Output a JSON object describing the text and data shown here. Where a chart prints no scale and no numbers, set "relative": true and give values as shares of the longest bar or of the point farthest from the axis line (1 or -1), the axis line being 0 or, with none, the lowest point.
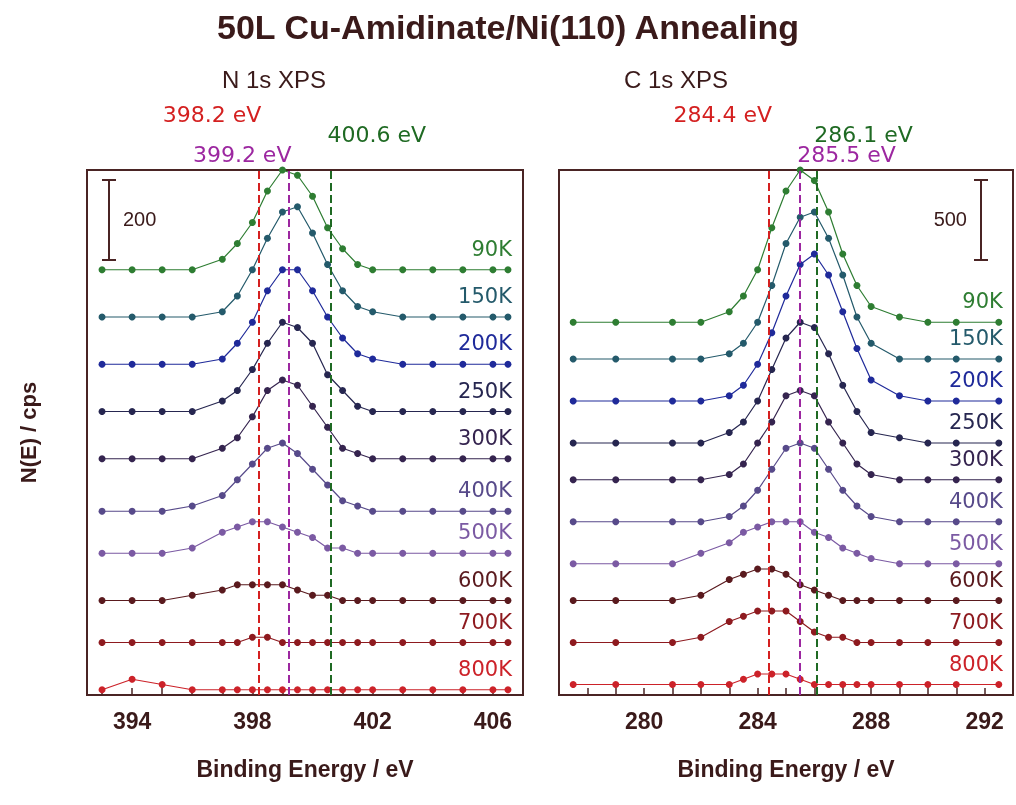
{
  "chart_data": [
    {
      "type": "line",
      "title": "50L Cu-Amidinate/Ni(110) Annealing",
      "subtitle": "N 1s XPS",
      "xlabel": "Binding Energy / eV",
      "ylabel": "N(E) / cps",
      "relative": true,
      "legend": false,
      "grid": false,
      "marker": "circle",
      "line_style": "solid",
      "annotations": [
        "200"
      ],
      "x": [
        393,
        394,
        395,
        396,
        397,
        397.5,
        398,
        398.5,
        399,
        399.5,
        400,
        400.5,
        401,
        401.5,
        402,
        403,
        404,
        405,
        406,
        406.5
      ],
      "xlim": [
        392.5,
        407
      ],
      "xticks": [
        {
          "value": 393,
          "label": null
        },
        394,
        {
          "value": 395,
          "label": null
        },
        {
          "value": 396,
          "label": null
        },
        {
          "value": 397,
          "label": null
        },
        398,
        {
          "value": 399,
          "label": null
        },
        {
          "value": 400,
          "label": null
        },
        {
          "value": 401,
          "label": null
        },
        402,
        {
          "value": 403,
          "label": null
        },
        {
          "value": 404,
          "label": null
        },
        {
          "value": 405,
          "label": null
        },
        406
      ],
      "ref_lines": [
        {
          "axis": "x",
          "value": 399.2,
          "label": "399.2 eV",
          "color": "#9c27a0",
          "line_style": "dashed"
        },
        {
          "axis": "x",
          "value": 400.6,
          "label": "400.6 eV",
          "color": "#1f6a23",
          "line_style": "dashed"
        },
        {
          "axis": "x",
          "value": 398.2,
          "label": "398.2 eV",
          "color": "#d42020",
          "line_style": "dashed"
        }
      ],
      "series": [
        {
          "name": "90K",
          "color": "#2e7d32",
          "values": [
            0.81,
            0.81,
            0.81,
            0.81,
            0.83,
            0.86,
            0.9,
            0.96,
            1.0,
            0.99,
            0.95,
            0.89,
            0.85,
            0.82,
            0.81,
            0.81,
            0.81,
            0.81,
            0.81,
            0.81
          ]
        },
        {
          "name": "150K",
          "color": "#245a6b",
          "values": [
            0.72,
            0.72,
            0.72,
            0.72,
            0.73,
            0.76,
            0.81,
            0.87,
            0.92,
            0.93,
            0.88,
            0.82,
            0.77,
            0.74,
            0.73,
            0.72,
            0.72,
            0.72,
            0.72,
            0.72
          ]
        },
        {
          "name": "200K",
          "color": "#1f2a9a",
          "values": [
            0.63,
            0.63,
            0.63,
            0.63,
            0.64,
            0.67,
            0.71,
            0.77,
            0.81,
            0.81,
            0.77,
            0.72,
            0.68,
            0.65,
            0.64,
            0.63,
            0.63,
            0.63,
            0.63,
            0.63
          ]
        },
        {
          "name": "250K",
          "color": "#262650",
          "values": [
            0.54,
            0.54,
            0.54,
            0.54,
            0.56,
            0.58,
            0.62,
            0.67,
            0.71,
            0.7,
            0.67,
            0.61,
            0.58,
            0.55,
            0.54,
            0.54,
            0.54,
            0.54,
            0.54,
            0.54
          ]
        },
        {
          "name": "300K",
          "color": "#35244f",
          "values": [
            0.45,
            0.45,
            0.45,
            0.45,
            0.47,
            0.49,
            0.53,
            0.58,
            0.6,
            0.59,
            0.55,
            0.51,
            0.47,
            0.46,
            0.45,
            0.45,
            0.45,
            0.45,
            0.45,
            0.45
          ]
        },
        {
          "name": "400K",
          "color": "#574a8a",
          "values": [
            0.35,
            0.35,
            0.35,
            0.36,
            0.38,
            0.41,
            0.44,
            0.47,
            0.48,
            0.46,
            0.43,
            0.4,
            0.37,
            0.36,
            0.35,
            0.35,
            0.35,
            0.35,
            0.35,
            0.35
          ]
        },
        {
          "name": "500K",
          "color": "#7b5aa3",
          "values": [
            0.27,
            0.27,
            0.27,
            0.28,
            0.31,
            0.32,
            0.33,
            0.33,
            0.32,
            0.31,
            0.3,
            0.28,
            0.28,
            0.27,
            0.27,
            0.27,
            0.27,
            0.27,
            0.27,
            0.27
          ]
        },
        {
          "name": "600K",
          "color": "#5a1a1e",
          "values": [
            0.18,
            0.18,
            0.18,
            0.19,
            0.2,
            0.21,
            0.21,
            0.21,
            0.21,
            0.2,
            0.19,
            0.19,
            0.18,
            0.18,
            0.18,
            0.18,
            0.18,
            0.18,
            0.18,
            0.18
          ]
        },
        {
          "name": "700K",
          "color": "#8e1a1f",
          "values": [
            0.1,
            0.1,
            0.1,
            0.1,
            0.1,
            0.1,
            0.11,
            0.11,
            0.1,
            0.1,
            0.1,
            0.1,
            0.1,
            0.1,
            0.1,
            0.1,
            0.1,
            0.1,
            0.1,
            0.1
          ]
        },
        {
          "name": "800K",
          "color": "#cc2229",
          "values": [
            0.01,
            0.03,
            0.02,
            0.01,
            0.01,
            0.01,
            0.01,
            0.01,
            0.01,
            0.01,
            0.01,
            0.01,
            0.01,
            0.01,
            0.01,
            0.01,
            0.01,
            0.01,
            0.01,
            0.01
          ]
        }
      ]
    },
    {
      "type": "line",
      "subtitle": "C 1s XPS",
      "xlabel": "Binding Energy / eV",
      "relative": true,
      "legend": false,
      "grid": false,
      "marker": "circle",
      "line_style": "solid",
      "annotations": [
        "500"
      ],
      "x": [
        277.5,
        279,
        281,
        282,
        283,
        283.5,
        284,
        284.5,
        285,
        285.5,
        286,
        286.5,
        287,
        287.5,
        288,
        289,
        290,
        291,
        292.5
      ],
      "xlim": [
        277,
        293
      ],
      "xticks": [
        {
          "value": 278,
          "label": null
        },
        {
          "value": 279,
          "label": null
        },
        280,
        {
          "value": 281,
          "label": null
        },
        {
          "value": 282,
          "label": null
        },
        {
          "value": 283,
          "label": null
        },
        284,
        {
          "value": 285,
          "label": null
        },
        {
          "value": 286,
          "label": null
        },
        {
          "value": 287,
          "label": null
        },
        288,
        {
          "value": 289,
          "label": null
        },
        {
          "value": 290,
          "label": null
        },
        {
          "value": 291,
          "label": null
        },
        292
      ],
      "ref_lines": [
        {
          "axis": "x",
          "value": 285.5,
          "label": "285.5 eV",
          "color": "#9c27a0",
          "line_style": "dashed"
        },
        {
          "axis": "x",
          "value": 286.1,
          "label": "286.1 eV",
          "color": "#1f6a23",
          "line_style": "dashed"
        },
        {
          "axis": "x",
          "value": 284.4,
          "label": "284.4 eV",
          "color": "#d42020",
          "line_style": "dashed"
        }
      ],
      "series": [
        {
          "name": "90K",
          "color": "#2e7d32",
          "values": [
            0.71,
            0.71,
            0.71,
            0.71,
            0.73,
            0.76,
            0.81,
            0.89,
            0.96,
            1.0,
            0.98,
            0.92,
            0.84,
            0.78,
            0.74,
            0.72,
            0.71,
            0.71,
            0.71
          ]
        },
        {
          "name": "150K",
          "color": "#245a6b",
          "values": [
            0.64,
            0.64,
            0.64,
            0.64,
            0.65,
            0.67,
            0.71,
            0.78,
            0.86,
            0.91,
            0.92,
            0.87,
            0.8,
            0.72,
            0.67,
            0.64,
            0.64,
            0.64,
            0.64
          ]
        },
        {
          "name": "200K",
          "color": "#1f2a9a",
          "values": [
            0.56,
            0.56,
            0.56,
            0.56,
            0.57,
            0.59,
            0.63,
            0.69,
            0.76,
            0.82,
            0.84,
            0.8,
            0.73,
            0.66,
            0.6,
            0.57,
            0.56,
            0.56,
            0.56
          ]
        },
        {
          "name": "250K",
          "color": "#262650",
          "values": [
            0.48,
            0.48,
            0.48,
            0.48,
            0.5,
            0.52,
            0.56,
            0.62,
            0.68,
            0.71,
            0.7,
            0.65,
            0.59,
            0.54,
            0.5,
            0.49,
            0.48,
            0.48,
            0.48
          ]
        },
        {
          "name": "300K",
          "color": "#35244f",
          "values": [
            0.41,
            0.41,
            0.41,
            0.41,
            0.42,
            0.44,
            0.48,
            0.52,
            0.57,
            0.58,
            0.57,
            0.52,
            0.48,
            0.44,
            0.42,
            0.41,
            0.41,
            0.41,
            0.41
          ]
        },
        {
          "name": "400K",
          "color": "#574a8a",
          "values": [
            0.33,
            0.33,
            0.33,
            0.33,
            0.34,
            0.36,
            0.39,
            0.43,
            0.47,
            0.48,
            0.47,
            0.43,
            0.39,
            0.36,
            0.34,
            0.33,
            0.33,
            0.33,
            0.33
          ]
        },
        {
          "name": "500K",
          "color": "#7b5aa3",
          "values": [
            0.25,
            0.25,
            0.25,
            0.27,
            0.29,
            0.31,
            0.32,
            0.33,
            0.33,
            0.33,
            0.31,
            0.3,
            0.28,
            0.27,
            0.26,
            0.25,
            0.25,
            0.25,
            0.25
          ]
        },
        {
          "name": "600K",
          "color": "#5a1a1e",
          "values": [
            0.18,
            0.18,
            0.18,
            0.19,
            0.22,
            0.23,
            0.24,
            0.24,
            0.23,
            0.21,
            0.2,
            0.19,
            0.18,
            0.18,
            0.18,
            0.18,
            0.18,
            0.18,
            0.18
          ]
        },
        {
          "name": "700K",
          "color": "#8e1a1f",
          "values": [
            0.1,
            0.1,
            0.1,
            0.11,
            0.14,
            0.15,
            0.16,
            0.16,
            0.16,
            0.14,
            0.12,
            0.11,
            0.11,
            0.1,
            0.1,
            0.1,
            0.1,
            0.1,
            0.1
          ]
        },
        {
          "name": "800K",
          "color": "#cc2229",
          "values": [
            0.02,
            0.02,
            0.02,
            0.02,
            0.02,
            0.03,
            0.04,
            0.04,
            0.04,
            0.03,
            0.02,
            0.02,
            0.02,
            0.02,
            0.02,
            0.02,
            0.02,
            0.02,
            0.02
          ]
        }
      ]
    }
  ]
}
